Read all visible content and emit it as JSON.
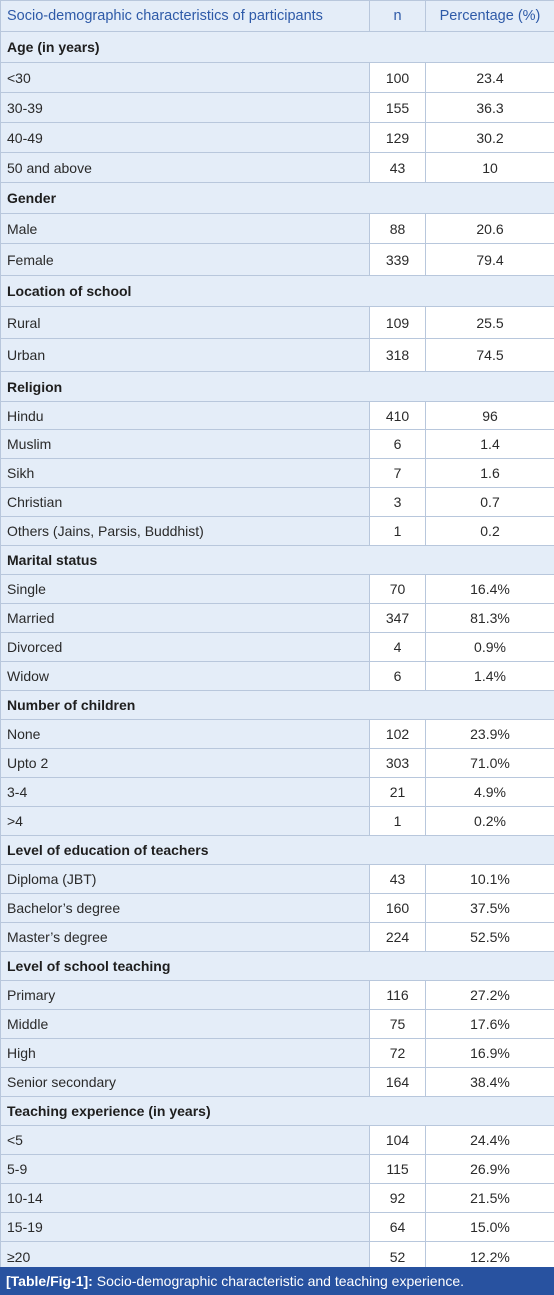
{
  "header": {
    "col1": "Socio-demographic characteristics of participants",
    "col2": "n",
    "col3": "Percentage (%)"
  },
  "sections": [
    {
      "title": "Age (in years)",
      "rows": [
        {
          "label": "<30",
          "n": "100",
          "pct": "23.4"
        },
        {
          "label": "30-39",
          "n": "155",
          "pct": "36.3"
        },
        {
          "label": "40-49",
          "n": "129",
          "pct": "30.2"
        },
        {
          "label": "50 and above",
          "n": "43",
          "pct": "10"
        }
      ]
    },
    {
      "title": "Gender",
      "rows": [
        {
          "label": "Male",
          "n": "88",
          "pct": "20.6"
        },
        {
          "label": "Female",
          "n": "339",
          "pct": "79.4"
        }
      ]
    },
    {
      "title": "Location of school",
      "rows": [
        {
          "label": "Rural",
          "n": "109",
          "pct": "25.5"
        },
        {
          "label": "Urban",
          "n": "318",
          "pct": "74.5"
        }
      ]
    },
    {
      "title": "Religion",
      "rows": [
        {
          "label": "Hindu",
          "n": "410",
          "pct": "96"
        },
        {
          "label": "Muslim",
          "n": "6",
          "pct": "1.4"
        },
        {
          "label": "Sikh",
          "n": "7",
          "pct": "1.6"
        },
        {
          "label": "Christian",
          "n": "3",
          "pct": "0.7"
        },
        {
          "label": "Others (Jains, Parsis, Buddhist)",
          "n": "1",
          "pct": "0.2"
        }
      ]
    },
    {
      "title": "Marital status",
      "rows": [
        {
          "label": "Single",
          "n": "70",
          "pct": "16.4%"
        },
        {
          "label": "Married",
          "n": "347",
          "pct": "81.3%"
        },
        {
          "label": "Divorced",
          "n": "4",
          "pct": "0.9%"
        },
        {
          "label": "Widow",
          "n": "6",
          "pct": "1.4%"
        }
      ]
    },
    {
      "title": "Number of children",
      "rows": [
        {
          "label": "None",
          "n": "102",
          "pct": "23.9%"
        },
        {
          "label": "Upto 2",
          "n": "303",
          "pct": "71.0%"
        },
        {
          "label": "3-4",
          "n": "21",
          "pct": "4.9%"
        },
        {
          "label": ">4",
          "n": "1",
          "pct": "0.2%"
        }
      ]
    },
    {
      "title": "Level of education of teachers",
      "rows": [
        {
          "label": "Diploma (JBT)",
          "n": "43",
          "pct": "10.1%"
        },
        {
          "label": "Bachelor’s degree",
          "n": "160",
          "pct": "37.5%"
        },
        {
          "label": "Master’s degree",
          "n": "224",
          "pct": "52.5%"
        }
      ]
    },
    {
      "title": "Level of school teaching",
      "rows": [
        {
          "label": "Primary",
          "n": "116",
          "pct": "27.2%"
        },
        {
          "label": "Middle",
          "n": "75",
          "pct": "17.6%"
        },
        {
          "label": "High",
          "n": "72",
          "pct": "16.9%"
        },
        {
          "label": "Senior secondary",
          "n": "164",
          "pct": "38.4%"
        }
      ]
    },
    {
      "title": "Teaching experience (in years)",
      "rows": [
        {
          "label": "<5",
          "n": "104",
          "pct": "24.4%"
        },
        {
          "label": "5-9",
          "n": "115",
          "pct": "26.9%"
        },
        {
          "label": "10-14",
          "n": "92",
          "pct": "21.5%"
        },
        {
          "label": "15-19",
          "n": "64",
          "pct": "15.0%"
        },
        {
          "label": "≥20",
          "n": "52",
          "pct": "12.2%"
        }
      ]
    }
  ],
  "caption": {
    "tag": "[Table/Fig-1]:",
    "text": "Socio-demographic characteristic and teaching experience."
  }
}
